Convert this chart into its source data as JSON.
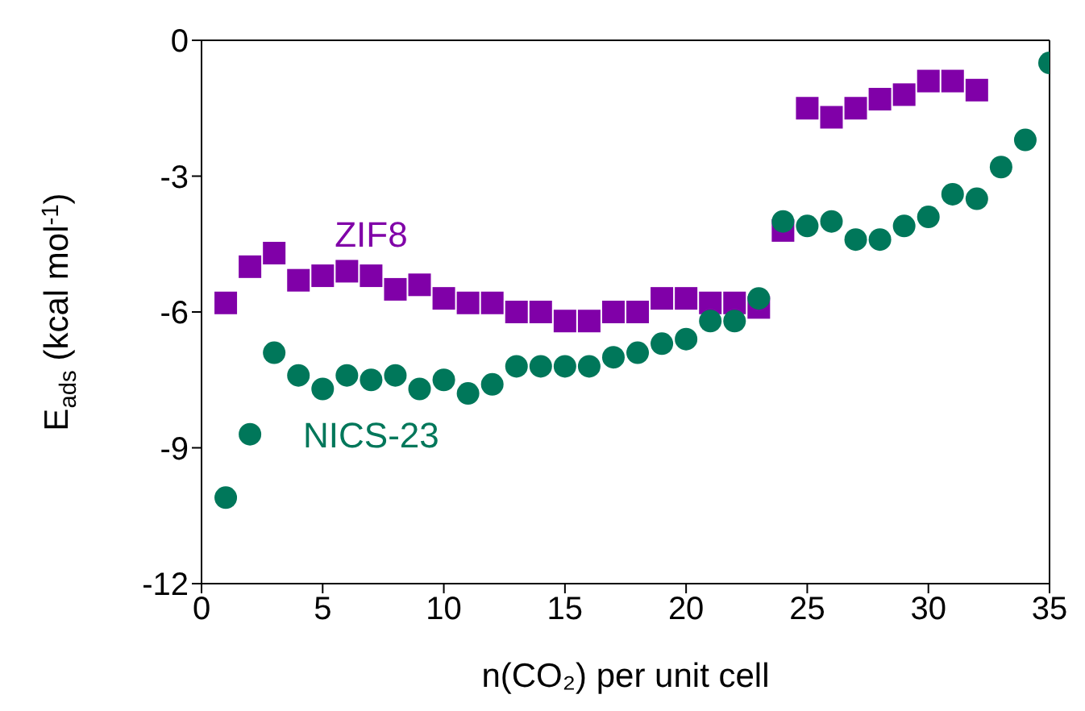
{
  "chart_data": {
    "type": "scatter",
    "xlabel": "n(CO₂) per unit cell",
    "ylabel": "E$_{ads}$ (kcal mol$^{-1}$)",
    "xlim": [
      0,
      35
    ],
    "xticks": [
      0,
      5,
      10,
      15,
      20,
      25,
      30,
      35
    ],
    "ylim": [
      -12,
      0
    ],
    "yticks": [
      -12,
      -9,
      -6,
      -3,
      0
    ],
    "series": [
      {
        "name": "ZIF8",
        "color": "#8000a8",
        "marker": "square",
        "x": [
          1,
          2,
          3,
          4,
          5,
          6,
          7,
          8,
          9,
          10,
          11,
          12,
          13,
          14,
          15,
          16,
          17,
          18,
          19,
          20,
          21,
          22,
          23,
          24,
          25,
          26,
          27,
          28,
          29,
          30,
          31,
          32
        ],
        "values": [
          -5.8,
          -5.0,
          -4.7,
          -5.3,
          -5.2,
          -5.1,
          -5.2,
          -5.5,
          -5.4,
          -5.7,
          -5.8,
          -5.8,
          -6.0,
          -6.0,
          -6.2,
          -6.2,
          -6.0,
          -6.0,
          -5.7,
          -5.7,
          -5.8,
          -5.8,
          -5.9,
          -4.2,
          -1.5,
          -1.7,
          -1.5,
          -1.3,
          -1.2,
          -0.9,
          -0.9,
          -1.1
        ]
      },
      {
        "name": "NICS-23",
        "color": "#00775a",
        "marker": "circle",
        "x": [
          1,
          2,
          3,
          4,
          5,
          6,
          7,
          8,
          9,
          10,
          11,
          12,
          13,
          14,
          15,
          16,
          17,
          18,
          19,
          20,
          21,
          22,
          23,
          24,
          25,
          26,
          27,
          28,
          29,
          30,
          31,
          32,
          33,
          34,
          35
        ],
        "values": [
          -10.1,
          -8.7,
          -6.9,
          -7.4,
          -7.7,
          -7.4,
          -7.5,
          -7.4,
          -7.7,
          -7.5,
          -7.8,
          -7.6,
          -7.2,
          -7.2,
          -7.2,
          -7.2,
          -7.0,
          -6.9,
          -6.7,
          -6.6,
          -6.2,
          -6.2,
          -5.7,
          -4.0,
          -4.1,
          -4.0,
          -4.4,
          -4.4,
          -4.1,
          -3.9,
          -3.4,
          -3.5,
          -2.8,
          -2.2,
          -0.5
        ]
      }
    ]
  }
}
